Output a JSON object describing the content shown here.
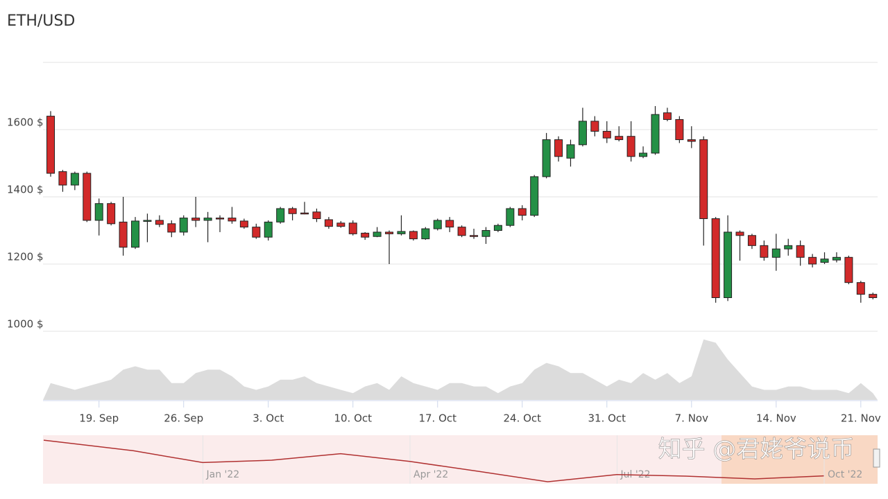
{
  "chart_data": {
    "type": "candlestick",
    "title": "ETH/USD",
    "up_color": "#249046",
    "down_color": "#d22a2a",
    "ylim": [
      1000,
      1800
    ],
    "yticks": [
      {
        "value": 1000,
        "label": "1000 $"
      },
      {
        "value": 1200,
        "label": "1200 $"
      },
      {
        "value": 1400,
        "label": "1400 $"
      },
      {
        "value": 1600,
        "label": "1600 $"
      }
    ],
    "grid": true,
    "categories": [
      null,
      null,
      null,
      null,
      "19. Sep",
      null,
      null,
      null,
      null,
      null,
      null,
      "26. Sep",
      null,
      null,
      null,
      null,
      null,
      null,
      "3. Oct",
      null,
      null,
      null,
      null,
      null,
      null,
      "10. Oct",
      null,
      null,
      null,
      null,
      null,
      null,
      "17. Oct",
      null,
      null,
      null,
      null,
      null,
      null,
      "24. Oct",
      null,
      null,
      null,
      null,
      null,
      null,
      "31. Oct",
      null,
      null,
      null,
      null,
      null,
      null,
      "7. Nov",
      null,
      null,
      null,
      null,
      null,
      null,
      "14. Nov",
      null,
      null,
      null,
      null,
      null,
      null,
      "21. Nov",
      null
    ],
    "ohlc": [
      [
        1640,
        1655,
        1460,
        1470
      ],
      [
        1475,
        1480,
        1415,
        1435
      ],
      [
        1435,
        1475,
        1420,
        1470
      ],
      [
        1470,
        1475,
        1325,
        1330
      ],
      [
        1330,
        1395,
        1285,
        1380
      ],
      [
        1380,
        1385,
        1315,
        1320
      ],
      [
        1325,
        1400,
        1225,
        1250
      ],
      [
        1250,
        1340,
        1245,
        1328
      ],
      [
        1328,
        1350,
        1265,
        1330
      ],
      [
        1330,
        1345,
        1310,
        1318
      ],
      [
        1320,
        1330,
        1280,
        1295
      ],
      [
        1295,
        1345,
        1285,
        1337
      ],
      [
        1337,
        1400,
        1310,
        1330
      ],
      [
        1330,
        1355,
        1265,
        1337
      ],
      [
        1337,
        1345,
        1295,
        1335
      ],
      [
        1337,
        1370,
        1320,
        1328
      ],
      [
        1328,
        1335,
        1305,
        1310
      ],
      [
        1310,
        1320,
        1275,
        1280
      ],
      [
        1280,
        1330,
        1270,
        1325
      ],
      [
        1325,
        1370,
        1320,
        1365
      ],
      [
        1365,
        1370,
        1330,
        1350
      ],
      [
        1352,
        1385,
        1348,
        1350
      ],
      [
        1355,
        1365,
        1325,
        1335
      ],
      [
        1332,
        1340,
        1305,
        1312
      ],
      [
        1322,
        1328,
        1308,
        1312
      ],
      [
        1322,
        1330,
        1285,
        1290
      ],
      [
        1292,
        1295,
        1272,
        1280
      ],
      [
        1282,
        1310,
        1280,
        1295
      ],
      [
        1295,
        1300,
        1200,
        1290
      ],
      [
        1290,
        1345,
        1285,
        1297
      ],
      [
        1297,
        1300,
        1270,
        1275
      ],
      [
        1275,
        1310,
        1272,
        1305
      ],
      [
        1305,
        1335,
        1300,
        1330
      ],
      [
        1330,
        1340,
        1295,
        1310
      ],
      [
        1310,
        1315,
        1280,
        1285
      ],
      [
        1285,
        1305,
        1275,
        1282
      ],
      [
        1282,
        1310,
        1260,
        1300
      ],
      [
        1300,
        1320,
        1295,
        1315
      ],
      [
        1315,
        1370,
        1310,
        1365
      ],
      [
        1365,
        1375,
        1330,
        1345
      ],
      [
        1345,
        1465,
        1340,
        1460
      ],
      [
        1460,
        1590,
        1455,
        1570
      ],
      [
        1570,
        1580,
        1505,
        1520
      ],
      [
        1515,
        1570,
        1490,
        1555
      ],
      [
        1555,
        1665,
        1550,
        1625
      ],
      [
        1625,
        1640,
        1580,
        1595
      ],
      [
        1595,
        1625,
        1560,
        1575
      ],
      [
        1580,
        1610,
        1565,
        1570
      ],
      [
        1580,
        1625,
        1505,
        1520
      ],
      [
        1520,
        1550,
        1515,
        1530
      ],
      [
        1530,
        1670,
        1525,
        1645
      ],
      [
        1650,
        1665,
        1625,
        1630
      ],
      [
        1630,
        1640,
        1560,
        1570
      ],
      [
        1570,
        1610,
        1545,
        1565
      ],
      [
        1570,
        1580,
        1255,
        1335
      ],
      [
        1335,
        1340,
        1085,
        1100
      ],
      [
        1100,
        1345,
        1090,
        1295
      ],
      [
        1295,
        1300,
        1210,
        1285
      ],
      [
        1285,
        1290,
        1245,
        1255
      ],
      [
        1255,
        1270,
        1210,
        1220
      ],
      [
        1220,
        1290,
        1180,
        1245
      ],
      [
        1245,
        1275,
        1225,
        1255
      ],
      [
        1255,
        1270,
        1195,
        1220
      ],
      [
        1220,
        1230,
        1190,
        1200
      ],
      [
        1205,
        1235,
        1200,
        1215
      ],
      [
        1212,
        1235,
        1205,
        1220
      ],
      [
        1220,
        1225,
        1140,
        1145
      ],
      [
        1145,
        1150,
        1085,
        1110
      ],
      [
        1110,
        1115,
        1095,
        1100
      ]
    ],
    "volume": {
      "ylim": [
        0,
        100
      ],
      "color": "#dcdcdc",
      "values": [
        25,
        20,
        15,
        20,
        25,
        30,
        45,
        50,
        45,
        45,
        25,
        25,
        40,
        45,
        45,
        35,
        20,
        15,
        20,
        30,
        30,
        35,
        25,
        20,
        15,
        10,
        20,
        25,
        15,
        35,
        25,
        20,
        15,
        25,
        25,
        20,
        20,
        10,
        20,
        25,
        45,
        55,
        50,
        40,
        40,
        30,
        20,
        30,
        25,
        40,
        30,
        40,
        25,
        35,
        90,
        85,
        60,
        40,
        20,
        15,
        15,
        20,
        20,
        15,
        15,
        15,
        10,
        25,
        10
      ]
    },
    "navigator": {
      "ylim": [
        900,
        4900
      ],
      "color": "#b03030",
      "categories": [
        null,
        "Jan '22",
        null,
        null,
        "Apr '22",
        null,
        null,
        "Jul '22",
        null,
        null,
        "Oct '22",
        null
      ],
      "values": [
        4600,
        3700,
        2700,
        2900,
        3450,
        2800,
        1950,
        1070,
        1680,
        1550,
        1310,
        1570
      ]
    },
    "watermark": "知乎 @君姥爷说币"
  }
}
